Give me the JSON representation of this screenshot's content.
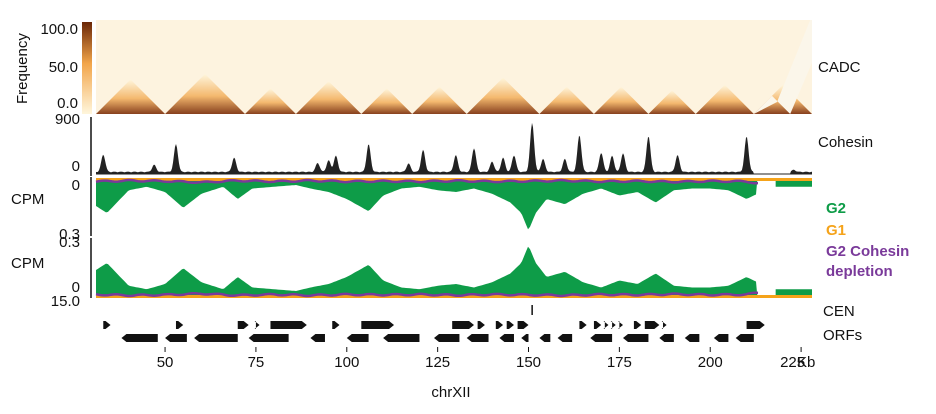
{
  "chart_data": {
    "type": "area",
    "xlabel": "chrXII",
    "x_unit": "Kb",
    "x_ticks": [
      50,
      75,
      100,
      125,
      150,
      175,
      200,
      225
    ],
    "xlim": [
      31,
      228
    ],
    "heatmap": {
      "label": "CADC",
      "colorbar_label": "Frequency",
      "colorbar_ticks": [
        "100.0",
        "50.0",
        "0.0"
      ],
      "colorbar_range": [
        0,
        100
      ],
      "colors": {
        "low": "#fff6dc",
        "mid": "#f2a54a",
        "high": "#6a2606"
      },
      "domains": [
        [
          31,
          50
        ],
        [
          50,
          72
        ],
        [
          72,
          86
        ],
        [
          86,
          104
        ],
        [
          104,
          118
        ],
        [
          118,
          133
        ],
        [
          133,
          153
        ],
        [
          153,
          168
        ],
        [
          168,
          183
        ],
        [
          183,
          196
        ],
        [
          196,
          212
        ],
        [
          212,
          228
        ]
      ],
      "gaps": [
        [
          212,
          222
        ]
      ]
    },
    "cohesin": {
      "label": "Cohesin",
      "ylim": [
        0,
        900
      ],
      "y_ticks": [
        "900",
        "0"
      ],
      "color": "#222222",
      "peaks": [
        {
          "x": 33,
          "y": 270
        },
        {
          "x": 47,
          "y": 110
        },
        {
          "x": 53,
          "y": 430
        },
        {
          "x": 69,
          "y": 220
        },
        {
          "x": 92,
          "y": 140
        },
        {
          "x": 95,
          "y": 180
        },
        {
          "x": 97,
          "y": 250
        },
        {
          "x": 106,
          "y": 430
        },
        {
          "x": 117,
          "y": 130
        },
        {
          "x": 121,
          "y": 340
        },
        {
          "x": 130,
          "y": 260
        },
        {
          "x": 135,
          "y": 370
        },
        {
          "x": 140,
          "y": 160
        },
        {
          "x": 143,
          "y": 220
        },
        {
          "x": 146,
          "y": 260
        },
        {
          "x": 151,
          "y": 760
        },
        {
          "x": 154,
          "y": 200
        },
        {
          "x": 160,
          "y": 200
        },
        {
          "x": 164,
          "y": 570
        },
        {
          "x": 170,
          "y": 300
        },
        {
          "x": 173,
          "y": 250
        },
        {
          "x": 176,
          "y": 290
        },
        {
          "x": 183,
          "y": 560
        },
        {
          "x": 191,
          "y": 260
        },
        {
          "x": 210,
          "y": 550
        },
        {
          "x": 223,
          "y": 30
        }
      ]
    },
    "cpm_panels": [
      {
        "ylabel": "CPM",
        "y_ticks": [
          "0",
          "0.3"
        ],
        "orientation": "down"
      },
      {
        "ylabel": "CPM",
        "y_ticks": [
          "0.3",
          "0"
        ],
        "orientation": "up"
      }
    ],
    "series": [
      {
        "name": "G2",
        "color": "#0e9c48",
        "x": [
          31,
          34,
          40,
          45,
          50,
          55,
          60,
          66,
          70,
          74,
          80,
          86,
          90,
          95,
          100,
          106,
          110,
          115,
          120,
          125,
          130,
          135,
          140,
          145,
          148,
          150,
          152,
          155,
          160,
          165,
          170,
          175,
          180,
          185,
          190,
          195,
          200,
          205,
          210,
          213
        ],
        "values": [
          0.16,
          0.2,
          0.07,
          0.05,
          0.08,
          0.17,
          0.09,
          0.05,
          0.12,
          0.06,
          0.05,
          0.04,
          0.06,
          0.08,
          0.12,
          0.19,
          0.1,
          0.06,
          0.05,
          0.07,
          0.08,
          0.06,
          0.09,
          0.14,
          0.2,
          0.3,
          0.2,
          0.12,
          0.15,
          0.09,
          0.06,
          0.1,
          0.08,
          0.14,
          0.07,
          0.06,
          0.06,
          0.07,
          0.12,
          0.09
        ]
      },
      {
        "name": "G1",
        "color": "#f5a31a",
        "x": [
          31,
          60,
          90,
          120,
          150,
          180,
          213
        ],
        "values": [
          0.01,
          0.01,
          0.01,
          0.01,
          0.01,
          0.01,
          0.01
        ]
      },
      {
        "name": "G2 Cohesin depletion",
        "color": "#7a3a9a",
        "x": [
          31,
          40,
          50,
          60,
          70,
          80,
          90,
          100,
          110,
          120,
          130,
          140,
          150,
          160,
          170,
          180,
          190,
          200,
          210,
          213
        ],
        "values": [
          0.02,
          0.015,
          0.018,
          0.025,
          0.015,
          0.02,
          0.015,
          0.02,
          0.018,
          0.02,
          0.016,
          0.02,
          0.018,
          0.015,
          0.02,
          0.018,
          0.022,
          0.018,
          0.02,
          0.03
        ]
      }
    ],
    "second_panel_extra": {
      "x": 224,
      "value": 0.05
    },
    "cpm_gap": [
      213,
      218
    ],
    "legend": [
      "G2",
      "G1",
      "G2 Cohesin",
      "depletion"
    ],
    "legend_position": "right",
    "bottom_left_label": "15.0",
    "tracks": {
      "cen_label": "CEN",
      "cen_position": 151,
      "orf_label": "ORFs",
      "orfs_top": [
        [
          33,
          35,
          1
        ],
        [
          53,
          55,
          1
        ],
        [
          70,
          73,
          1
        ],
        [
          75,
          76,
          1
        ],
        [
          79,
          89,
          1
        ],
        [
          96,
          98,
          1
        ],
        [
          104,
          113,
          1
        ],
        [
          129,
          135,
          1
        ],
        [
          136,
          138,
          1
        ],
        [
          141,
          143,
          1
        ],
        [
          144,
          146,
          1
        ],
        [
          147,
          150,
          1
        ],
        [
          164,
          166,
          1
        ],
        [
          168,
          170,
          1
        ],
        [
          171,
          172,
          1
        ],
        [
          173,
          174,
          1
        ],
        [
          175,
          176,
          1
        ],
        [
          179,
          181,
          1
        ],
        [
          182,
          186,
          1
        ],
        [
          187,
          188,
          1
        ],
        [
          210,
          215,
          1
        ]
      ],
      "orfs_bottom": [
        [
          38,
          48,
          -1
        ],
        [
          50,
          56,
          -1
        ],
        [
          58,
          70,
          -1
        ],
        [
          73,
          84,
          -1
        ],
        [
          90,
          94,
          -1
        ],
        [
          100,
          106,
          -1
        ],
        [
          110,
          120,
          -1
        ],
        [
          124,
          131,
          -1
        ],
        [
          133,
          139,
          -1
        ],
        [
          142,
          146,
          -1
        ],
        [
          148,
          150,
          -1
        ],
        [
          153,
          156,
          -1
        ],
        [
          158,
          162,
          -1
        ],
        [
          167,
          173,
          -1
        ],
        [
          176,
          183,
          -1
        ],
        [
          186,
          190,
          -1
        ],
        [
          193,
          197,
          -1
        ],
        [
          201,
          205,
          -1
        ],
        [
          207,
          212,
          -1
        ]
      ]
    }
  }
}
